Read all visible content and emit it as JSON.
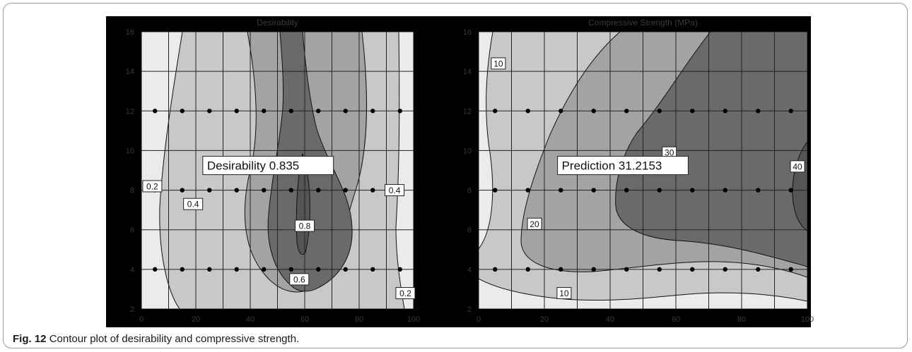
{
  "figure": {
    "caption_label": "Fig. 12",
    "caption_text": "Contour plot of desirability and compressive strength."
  },
  "colors": {
    "background": "#000000",
    "levels": [
      "#ebebeb",
      "#c8c8c8",
      "#a3a3a3",
      "#808080",
      "#6a6a6a",
      "#555555"
    ],
    "grid": "#222222",
    "point": "#000000"
  },
  "chart_data": [
    {
      "type": "contour",
      "title": "Desirability",
      "xlim": [
        0,
        100
      ],
      "ylim": [
        2,
        16
      ],
      "x_ticks": [
        "0",
        "20",
        "40",
        "60",
        "80",
        "100"
      ],
      "y_ticks": [
        "2",
        "4",
        "6",
        "8",
        "10",
        "12",
        "14",
        "16"
      ],
      "contour_levels": [
        0.2,
        0.4,
        0.6,
        0.8
      ],
      "contour_labels": [
        {
          "text": "0.2",
          "x": 4,
          "y": 8.2
        },
        {
          "text": "0.4",
          "x": 19,
          "y": 7.3
        },
        {
          "text": "0.8",
          "x": 60,
          "y": 6.2
        },
        {
          "text": "0.6",
          "x": 58,
          "y": 3.5
        },
        {
          "text": "0.4",
          "x": 93,
          "y": 8.0
        },
        {
          "text": "0.2",
          "x": 97,
          "y": 2.8
        }
      ],
      "design_points": {
        "x": [
          5,
          15,
          25,
          35,
          45,
          55,
          65,
          75,
          85,
          95
        ],
        "y": [
          4,
          8,
          12
        ]
      },
      "optimum": {
        "label": "Desirability",
        "value": "0.835",
        "x": 60,
        "y": 8
      }
    },
    {
      "type": "contour",
      "title": "Compressive Strength (MPa)",
      "ylabel": "",
      "xlim": [
        0,
        100
      ],
      "ylim": [
        2,
        16
      ],
      "x_ticks": [
        "0",
        "20",
        "40",
        "60",
        "80",
        "100"
      ],
      "y_ticks": [
        "2",
        "4",
        "6",
        "8",
        "10",
        "12",
        "14",
        "16"
      ],
      "contour_levels": [
        10,
        20,
        30,
        40
      ],
      "contour_labels": [
        {
          "text": "10",
          "x": 6,
          "y": 14.4
        },
        {
          "text": "30",
          "x": 58,
          "y": 9.9
        },
        {
          "text": "40",
          "x": 97,
          "y": 9.2
        },
        {
          "text": "20",
          "x": 17,
          "y": 6.3
        },
        {
          "text": "10",
          "x": 26,
          "y": 2.8
        }
      ],
      "design_points": {
        "x": [
          5,
          15,
          25,
          35,
          45,
          55,
          65,
          75,
          85,
          95
        ],
        "y": [
          4,
          8,
          12
        ]
      },
      "optimum": {
        "label": "Prediction",
        "value": "31.2153",
        "x": 55,
        "y": 8
      }
    }
  ]
}
